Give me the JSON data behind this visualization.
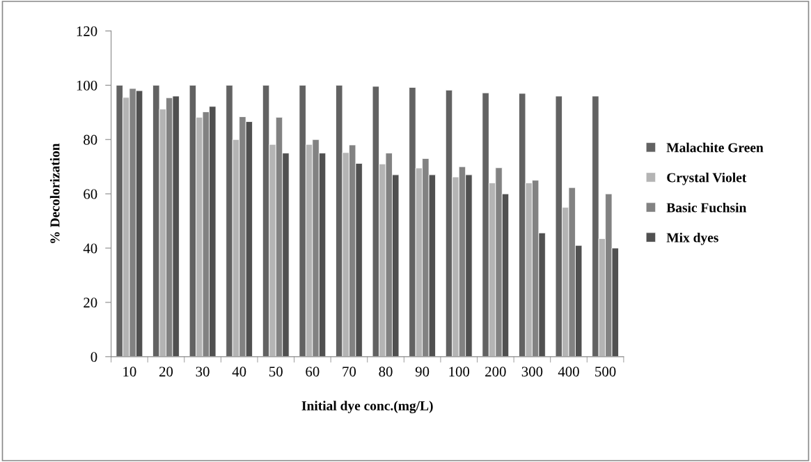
{
  "chart_data": {
    "type": "bar",
    "xlabel": "Initial dye conc.(mg/L)",
    "ylabel": "% Decolorization",
    "categories": [
      "10",
      "20",
      "30",
      "40",
      "50",
      "60",
      "70",
      "80",
      "90",
      "100",
      "200",
      "300",
      "400",
      "500"
    ],
    "series": [
      {
        "name": "Malachite Green",
        "color": "#626262",
        "values": [
          100,
          100,
          100,
          100,
          100,
          100,
          100,
          99.6,
          99.2,
          98.2,
          97.2,
          97,
          96,
          96
        ]
      },
      {
        "name": "Crystal Violet",
        "color": "#b4b4b4",
        "values": [
          95.5,
          91.2,
          88.2,
          80,
          78.2,
          78.2,
          75.2,
          71,
          69.5,
          66.2,
          64,
          64,
          55,
          43.5
        ]
      },
      {
        "name": "Basic Fuchsin",
        "color": "#828282",
        "values": [
          98.8,
          95.4,
          90.2,
          88.4,
          88.2,
          80,
          78,
          75,
          73,
          70,
          69.6,
          65,
          62.3,
          60
        ]
      },
      {
        "name": "Mix dyes",
        "color": "#505050",
        "values": [
          98,
          96,
          92.2,
          86.6,
          75,
          75,
          71.2,
          67,
          67,
          67,
          60,
          45.6,
          41,
          40
        ]
      }
    ],
    "ylim": [
      0,
      120
    ],
    "yticks": [
      0,
      20,
      40,
      60,
      80,
      100,
      120
    ],
    "grid": false,
    "legend": "right"
  }
}
